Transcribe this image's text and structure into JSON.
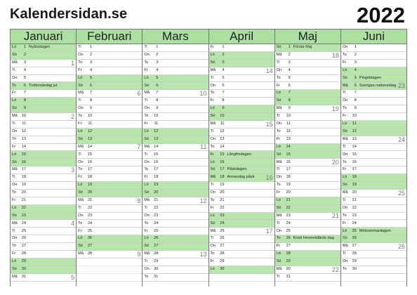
{
  "site_title": "Kalendersidan.se",
  "year": "2022",
  "months": [
    {
      "name": "Januari",
      "days": [
        {
          "wd": "Lö",
          "d": "1",
          "ev": "Nyårsdagen",
          "g": true
        },
        {
          "wd": "Sö",
          "d": "2",
          "g": true
        },
        {
          "wd": "Må",
          "d": "3",
          "wk": "1"
        },
        {
          "wd": "Ti",
          "d": "4"
        },
        {
          "wd": "On",
          "d": "5"
        },
        {
          "wd": "To",
          "d": "6",
          "ev": "Trettondedag jul",
          "g": true
        },
        {
          "wd": "Fr",
          "d": "7"
        },
        {
          "wd": "Lö",
          "d": "8",
          "g": true
        },
        {
          "wd": "Sö",
          "d": "9",
          "g": true
        },
        {
          "wd": "Må",
          "d": "10",
          "wk": "2"
        },
        {
          "wd": "Ti",
          "d": "11"
        },
        {
          "wd": "On",
          "d": "12"
        },
        {
          "wd": "To",
          "d": "13"
        },
        {
          "wd": "Fr",
          "d": "14"
        },
        {
          "wd": "Lö",
          "d": "15",
          "g": true
        },
        {
          "wd": "Sö",
          "d": "16",
          "g": true
        },
        {
          "wd": "Må",
          "d": "17",
          "wk": "3"
        },
        {
          "wd": "Ti",
          "d": "18"
        },
        {
          "wd": "On",
          "d": "19"
        },
        {
          "wd": "To",
          "d": "20"
        },
        {
          "wd": "Fr",
          "d": "21"
        },
        {
          "wd": "Lö",
          "d": "22",
          "g": true
        },
        {
          "wd": "Sö",
          "d": "23",
          "g": true
        },
        {
          "wd": "Må",
          "d": "24",
          "wk": "4"
        },
        {
          "wd": "Ti",
          "d": "25"
        },
        {
          "wd": "On",
          "d": "26"
        },
        {
          "wd": "To",
          "d": "27"
        },
        {
          "wd": "Fr",
          "d": "28"
        },
        {
          "wd": "Lö",
          "d": "29",
          "g": true
        },
        {
          "wd": "Sö",
          "d": "30",
          "g": true
        },
        {
          "wd": "Må",
          "d": "31",
          "wk": "5"
        }
      ]
    },
    {
      "name": "Februari",
      "days": [
        {
          "wd": "Ti",
          "d": "1"
        },
        {
          "wd": "On",
          "d": "2"
        },
        {
          "wd": "To",
          "d": "3"
        },
        {
          "wd": "Fr",
          "d": "4"
        },
        {
          "wd": "Lö",
          "d": "5",
          "g": true
        },
        {
          "wd": "Sö",
          "d": "6",
          "g": true
        },
        {
          "wd": "Må",
          "d": "7",
          "wk": "6"
        },
        {
          "wd": "Ti",
          "d": "8"
        },
        {
          "wd": "On",
          "d": "9"
        },
        {
          "wd": "To",
          "d": "10"
        },
        {
          "wd": "Fr",
          "d": "11"
        },
        {
          "wd": "Lö",
          "d": "12",
          "g": true
        },
        {
          "wd": "Sö",
          "d": "13",
          "g": true
        },
        {
          "wd": "Må",
          "d": "14",
          "wk": "7"
        },
        {
          "wd": "Ti",
          "d": "15"
        },
        {
          "wd": "On",
          "d": "16"
        },
        {
          "wd": "To",
          "d": "17"
        },
        {
          "wd": "Fr",
          "d": "18"
        },
        {
          "wd": "Lö",
          "d": "19",
          "g": true
        },
        {
          "wd": "Sö",
          "d": "20",
          "g": true
        },
        {
          "wd": "Må",
          "d": "21",
          "wk": "8"
        },
        {
          "wd": "Ti",
          "d": "22"
        },
        {
          "wd": "On",
          "d": "23"
        },
        {
          "wd": "To",
          "d": "24"
        },
        {
          "wd": "Fr",
          "d": "25"
        },
        {
          "wd": "Lö",
          "d": "26",
          "g": true
        },
        {
          "wd": "Sö",
          "d": "27",
          "g": true
        },
        {
          "wd": "Må",
          "d": "28",
          "wk": "9"
        }
      ]
    },
    {
      "name": "Mars",
      "days": [
        {
          "wd": "Ti",
          "d": "1"
        },
        {
          "wd": "On",
          "d": "2"
        },
        {
          "wd": "To",
          "d": "3"
        },
        {
          "wd": "Fr",
          "d": "4"
        },
        {
          "wd": "Lö",
          "d": "5",
          "g": true
        },
        {
          "wd": "Sö",
          "d": "6",
          "g": true
        },
        {
          "wd": "Må",
          "d": "7",
          "wk": "10"
        },
        {
          "wd": "Ti",
          "d": "8"
        },
        {
          "wd": "On",
          "d": "9"
        },
        {
          "wd": "To",
          "d": "10"
        },
        {
          "wd": "Fr",
          "d": "11"
        },
        {
          "wd": "Lö",
          "d": "12",
          "g": true
        },
        {
          "wd": "Sö",
          "d": "13",
          "g": true
        },
        {
          "wd": "Må",
          "d": "14",
          "wk": "11"
        },
        {
          "wd": "Ti",
          "d": "15"
        },
        {
          "wd": "On",
          "d": "16"
        },
        {
          "wd": "To",
          "d": "17"
        },
        {
          "wd": "Fr",
          "d": "18"
        },
        {
          "wd": "Lö",
          "d": "19",
          "g": true
        },
        {
          "wd": "Sö",
          "d": "20",
          "g": true
        },
        {
          "wd": "Må",
          "d": "21",
          "wk": "12"
        },
        {
          "wd": "Ti",
          "d": "22"
        },
        {
          "wd": "On",
          "d": "23"
        },
        {
          "wd": "To",
          "d": "24"
        },
        {
          "wd": "Fr",
          "d": "25"
        },
        {
          "wd": "Lö",
          "d": "26",
          "g": true
        },
        {
          "wd": "Sö",
          "d": "27",
          "g": true
        },
        {
          "wd": "Må",
          "d": "28",
          "wk": "13"
        },
        {
          "wd": "Ti",
          "d": "29"
        },
        {
          "wd": "On",
          "d": "30"
        },
        {
          "wd": "To",
          "d": "31"
        }
      ]
    },
    {
      "name": "April",
      "days": [
        {
          "wd": "Fr",
          "d": "1"
        },
        {
          "wd": "Lö",
          "d": "2",
          "g": true
        },
        {
          "wd": "Sö",
          "d": "3",
          "g": true
        },
        {
          "wd": "Må",
          "d": "4",
          "wk": "14"
        },
        {
          "wd": "Ti",
          "d": "5"
        },
        {
          "wd": "On",
          "d": "6"
        },
        {
          "wd": "To",
          "d": "7"
        },
        {
          "wd": "Fr",
          "d": "8"
        },
        {
          "wd": "Lö",
          "d": "9",
          "g": true
        },
        {
          "wd": "Sö",
          "d": "10",
          "g": true
        },
        {
          "wd": "Må",
          "d": "11",
          "wk": "15"
        },
        {
          "wd": "Ti",
          "d": "12"
        },
        {
          "wd": "On",
          "d": "13"
        },
        {
          "wd": "To",
          "d": "14"
        },
        {
          "wd": "Fr",
          "d": "15",
          "ev": "Långfredagen",
          "g": true
        },
        {
          "wd": "Lö",
          "d": "16",
          "g": true
        },
        {
          "wd": "Sö",
          "d": "17",
          "ev": "Påskdagen",
          "g": true
        },
        {
          "wd": "Må",
          "d": "18",
          "ev": "Annandag påsk",
          "wk": "16",
          "g": true
        },
        {
          "wd": "Ti",
          "d": "19"
        },
        {
          "wd": "On",
          "d": "20"
        },
        {
          "wd": "To",
          "d": "21"
        },
        {
          "wd": "Fr",
          "d": "22"
        },
        {
          "wd": "Lö",
          "d": "23",
          "g": true
        },
        {
          "wd": "Sö",
          "d": "24",
          "g": true
        },
        {
          "wd": "Må",
          "d": "25",
          "wk": "17"
        },
        {
          "wd": "Ti",
          "d": "26"
        },
        {
          "wd": "On",
          "d": "27"
        },
        {
          "wd": "To",
          "d": "28"
        },
        {
          "wd": "Fr",
          "d": "29"
        },
        {
          "wd": "Lö",
          "d": "30",
          "g": true
        }
      ]
    },
    {
      "name": "Maj",
      "days": [
        {
          "wd": "Sö",
          "d": "1",
          "ev": "Första Maj",
          "g": true
        },
        {
          "wd": "Må",
          "d": "2",
          "wk": "18"
        },
        {
          "wd": "Ti",
          "d": "3"
        },
        {
          "wd": "On",
          "d": "4"
        },
        {
          "wd": "To",
          "d": "5"
        },
        {
          "wd": "Fr",
          "d": "6"
        },
        {
          "wd": "Lö",
          "d": "7",
          "g": true
        },
        {
          "wd": "Sö",
          "d": "8",
          "g": true
        },
        {
          "wd": "Må",
          "d": "9",
          "wk": "19"
        },
        {
          "wd": "Ti",
          "d": "10"
        },
        {
          "wd": "On",
          "d": "11"
        },
        {
          "wd": "To",
          "d": "12"
        },
        {
          "wd": "Fr",
          "d": "13"
        },
        {
          "wd": "Lö",
          "d": "14",
          "g": true
        },
        {
          "wd": "Sö",
          "d": "15",
          "g": true
        },
        {
          "wd": "Må",
          "d": "16",
          "wk": "20"
        },
        {
          "wd": "Ti",
          "d": "17"
        },
        {
          "wd": "On",
          "d": "18"
        },
        {
          "wd": "To",
          "d": "19"
        },
        {
          "wd": "Fr",
          "d": "20"
        },
        {
          "wd": "Lö",
          "d": "21",
          "g": true
        },
        {
          "wd": "Sö",
          "d": "22",
          "g": true
        },
        {
          "wd": "Må",
          "d": "23",
          "wk": "21"
        },
        {
          "wd": "Ti",
          "d": "24"
        },
        {
          "wd": "On",
          "d": "25"
        },
        {
          "wd": "To",
          "d": "26",
          "ev": "Kristi himmelsfärds dag",
          "g": true
        },
        {
          "wd": "Fr",
          "d": "27"
        },
        {
          "wd": "Lö",
          "d": "28",
          "g": true
        },
        {
          "wd": "Sö",
          "d": "29",
          "g": true
        },
        {
          "wd": "Må",
          "d": "30",
          "wk": "22"
        },
        {
          "wd": "Ti",
          "d": "31"
        }
      ]
    },
    {
      "name": "Juni",
      "days": [
        {
          "wd": "On",
          "d": "1"
        },
        {
          "wd": "To",
          "d": "2"
        },
        {
          "wd": "Fr",
          "d": "3"
        },
        {
          "wd": "Lö",
          "d": "4",
          "g": true
        },
        {
          "wd": "Sö",
          "d": "5",
          "ev": "Pingstdagen",
          "g": true
        },
        {
          "wd": "Må",
          "d": "6",
          "ev": "Sveriges nationaldag",
          "wk": "23",
          "g": true
        },
        {
          "wd": "Ti",
          "d": "7"
        },
        {
          "wd": "On",
          "d": "8"
        },
        {
          "wd": "To",
          "d": "9"
        },
        {
          "wd": "Fr",
          "d": "10"
        },
        {
          "wd": "Lö",
          "d": "11",
          "g": true
        },
        {
          "wd": "Sö",
          "d": "12",
          "g": true
        },
        {
          "wd": "Må",
          "d": "13",
          "wk": "24"
        },
        {
          "wd": "Ti",
          "d": "14"
        },
        {
          "wd": "On",
          "d": "15"
        },
        {
          "wd": "To",
          "d": "16"
        },
        {
          "wd": "Fr",
          "d": "17"
        },
        {
          "wd": "Lö",
          "d": "18",
          "g": true
        },
        {
          "wd": "Sö",
          "d": "19",
          "g": true
        },
        {
          "wd": "Må",
          "d": "20",
          "wk": "25"
        },
        {
          "wd": "Ti",
          "d": "21"
        },
        {
          "wd": "On",
          "d": "22"
        },
        {
          "wd": "To",
          "d": "23"
        },
        {
          "wd": "Fr",
          "d": "24"
        },
        {
          "wd": "Lö",
          "d": "25",
          "ev": "Midsommardagen",
          "g": true
        },
        {
          "wd": "Sö",
          "d": "26",
          "g": true
        },
        {
          "wd": "Må",
          "d": "27",
          "wk": "26"
        },
        {
          "wd": "Ti",
          "d": "28"
        },
        {
          "wd": "On",
          "d": "29"
        },
        {
          "wd": "To",
          "d": "30"
        }
      ]
    }
  ]
}
